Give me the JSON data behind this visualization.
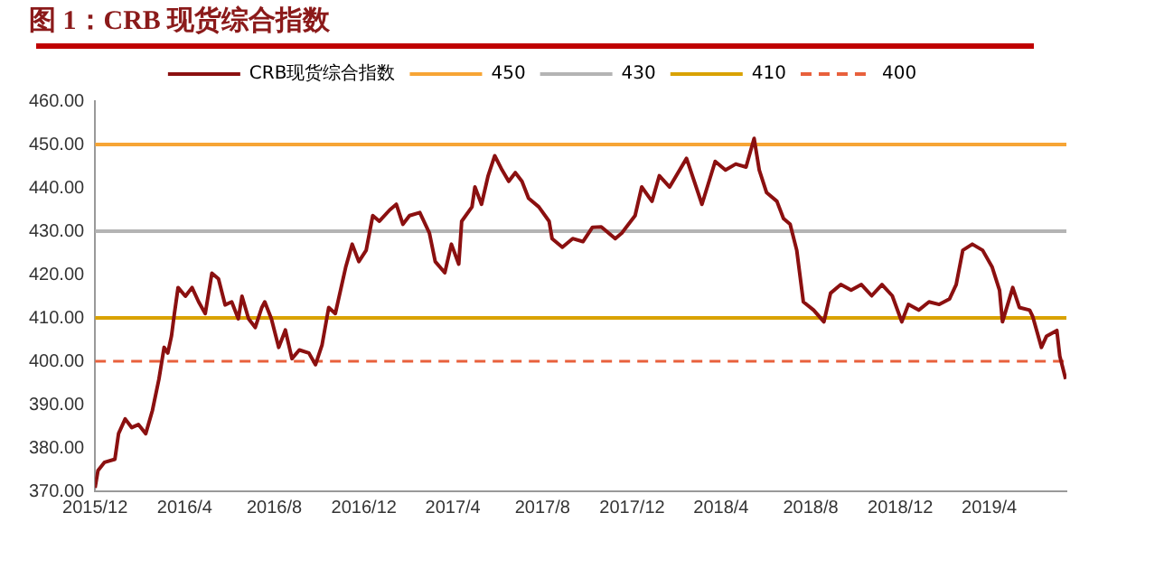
{
  "chart_data": {
    "type": "line",
    "title": "图 1：CRB 现货综合指数",
    "legend": "top",
    "marker": "none",
    "xlim": [
      "2015-12-01",
      "2019-07-15"
    ],
    "xticks": [
      {
        "value": "2015-12-01",
        "label": "2015/12"
      },
      {
        "value": "2016-04-01",
        "label": "2016/4"
      },
      {
        "value": "2016-08-01",
        "label": "2016/8"
      },
      {
        "value": "2016-12-01",
        "label": "2016/12"
      },
      {
        "value": "2017-04-01",
        "label": "2017/4"
      },
      {
        "value": "2017-08-01",
        "label": "2017/8"
      },
      {
        "value": "2017-12-01",
        "label": "2017/12"
      },
      {
        "value": "2018-04-01",
        "label": "2018/4"
      },
      {
        "value": "2018-08-01",
        "label": "2018/8"
      },
      {
        "value": "2018-12-01",
        "label": "2018/12"
      },
      {
        "value": "2019-04-01",
        "label": "2019/4"
      }
    ],
    "ylim": [
      370,
      460
    ],
    "yticks": [
      {
        "value": 370,
        "label": "370.00"
      },
      {
        "value": 380,
        "label": "380.00"
      },
      {
        "value": 390,
        "label": "390.00"
      },
      {
        "value": 400,
        "label": "400.00"
      },
      {
        "value": 410,
        "label": "410.00"
      },
      {
        "value": 420,
        "label": "420.00"
      },
      {
        "value": 430,
        "label": "430.00"
      },
      {
        "value": 440,
        "label": "440.00"
      },
      {
        "value": 450,
        "label": "450.00"
      },
      {
        "value": 460,
        "label": "460.00"
      }
    ],
    "series": [
      {
        "name": "CRB现货综合指数",
        "color": "#8b1010",
        "line_style": "solid",
        "x": [
          "2015-12-01",
          "2015-12-05",
          "2015-12-14",
          "2015-12-28",
          "2016-01-02",
          "2016-01-11",
          "2016-01-20",
          "2016-01-29",
          "2016-02-08",
          "2016-02-17",
          "2016-02-26",
          "2016-03-04",
          "2016-03-09",
          "2016-03-14",
          "2016-03-18",
          "2016-03-23",
          "2016-04-02",
          "2016-04-11",
          "2016-04-20",
          "2016-04-29",
          "2016-05-08",
          "2016-05-17",
          "2016-05-26",
          "2016-06-04",
          "2016-06-13",
          "2016-06-18",
          "2016-06-27",
          "2016-07-06",
          "2016-07-15",
          "2016-07-19",
          "2016-07-28",
          "2016-08-07",
          "2016-08-16",
          "2016-08-25",
          "2016-09-04",
          "2016-09-17",
          "2016-09-26",
          "2016-10-05",
          "2016-10-14",
          "2016-10-23",
          "2016-11-06",
          "2016-11-15",
          "2016-11-24",
          "2016-12-04",
          "2016-12-13",
          "2016-12-22",
          "2017-01-05",
          "2017-01-14",
          "2017-01-23",
          "2017-02-01",
          "2017-02-15",
          "2017-02-28",
          "2017-03-08",
          "2017-03-21",
          "2017-03-30",
          "2017-04-09",
          "2017-04-13",
          "2017-04-27",
          "2017-05-01",
          "2017-05-10",
          "2017-05-19",
          "2017-05-28",
          "2017-06-07",
          "2017-06-16",
          "2017-06-25",
          "2017-07-04",
          "2017-07-13",
          "2017-07-27",
          "2017-08-10",
          "2017-08-14",
          "2017-08-28",
          "2017-09-11",
          "2017-09-25",
          "2017-10-08",
          "2017-10-20",
          "2017-11-08",
          "2017-11-17",
          "2017-12-05",
          "2017-12-14",
          "2017-12-28",
          "2018-01-07",
          "2018-01-21",
          "2018-02-13",
          "2018-03-06",
          "2018-03-24",
          "2018-04-07",
          "2018-04-21",
          "2018-05-05",
          "2018-05-16",
          "2018-05-23",
          "2018-06-02",
          "2018-06-16",
          "2018-06-25",
          "2018-07-04",
          "2018-07-13",
          "2018-07-22",
          "2018-08-05",
          "2018-08-19",
          "2018-08-28",
          "2018-09-11",
          "2018-09-25",
          "2018-10-09",
          "2018-10-23",
          "2018-11-06",
          "2018-11-20",
          "2018-12-03",
          "2018-12-12",
          "2018-12-26",
          "2019-01-09",
          "2019-01-23",
          "2019-02-06",
          "2019-02-15",
          "2019-02-24",
          "2019-03-09",
          "2019-03-23",
          "2019-04-05",
          "2019-04-15",
          "2019-04-19",
          "2019-05-03",
          "2019-05-12",
          "2019-05-26",
          "2019-05-30",
          "2019-06-11",
          "2019-06-18",
          "2019-07-02",
          "2019-07-06",
          "2019-07-14"
        ],
        "values": [
          370.8,
          374.8,
          376.7,
          377.4,
          383.3,
          386.7,
          384.7,
          385.4,
          383.3,
          388.6,
          395.9,
          403.2,
          401.9,
          405.8,
          411.0,
          417.0,
          415.0,
          417.0,
          413.7,
          411.0,
          420.3,
          419.0,
          413.0,
          413.7,
          409.8,
          415.0,
          409.8,
          407.8,
          412.4,
          413.7,
          409.8,
          403.2,
          407.2,
          400.6,
          402.6,
          401.9,
          399.2,
          403.8,
          412.4,
          411.0,
          421.6,
          427.0,
          423.0,
          425.6,
          433.6,
          432.3,
          434.9,
          436.2,
          431.6,
          433.6,
          434.3,
          429.6,
          423.0,
          420.4,
          427.0,
          422.4,
          432.3,
          435.6,
          440.2,
          436.2,
          442.8,
          447.4,
          444.1,
          441.5,
          443.5,
          441.5,
          437.6,
          435.6,
          432.3,
          428.3,
          426.3,
          428.3,
          427.6,
          430.9,
          431.0,
          428.3,
          429.6,
          433.6,
          440.2,
          436.9,
          442.8,
          440.2,
          446.8,
          436.2,
          446.1,
          444.1,
          445.5,
          444.8,
          451.4,
          444.1,
          438.9,
          436.9,
          432.9,
          431.6,
          425.6,
          413.7,
          411.8,
          409.1,
          415.7,
          417.7,
          416.4,
          417.7,
          415.1,
          417.7,
          415.1,
          409.1,
          413.1,
          411.8,
          413.7,
          413.1,
          414.4,
          417.7,
          425.6,
          427.0,
          425.6,
          421.7,
          416.4,
          409.1,
          417.0,
          412.4,
          411.8,
          410.4,
          403.2,
          405.8,
          407.1,
          401.2,
          395.9
        ]
      },
      {
        "name": "450",
        "color": "#f7a535",
        "line_style": "solid",
        "x": [
          "2015-12-01",
          "2019-07-15"
        ],
        "values": [
          450,
          450
        ]
      },
      {
        "name": "430",
        "color": "#b4b4b4",
        "line_style": "solid",
        "x": [
          "2015-12-01",
          "2019-07-15"
        ],
        "values": [
          430,
          430
        ]
      },
      {
        "name": "410",
        "color": "#d9a200",
        "line_style": "solid",
        "x": [
          "2015-12-01",
          "2019-07-15"
        ],
        "values": [
          410,
          410
        ]
      },
      {
        "name": "400",
        "color": "#e8603c",
        "line_style": "dashed",
        "x": [
          "2015-12-01",
          "2019-07-15"
        ],
        "values": [
          400,
          400
        ]
      }
    ]
  }
}
